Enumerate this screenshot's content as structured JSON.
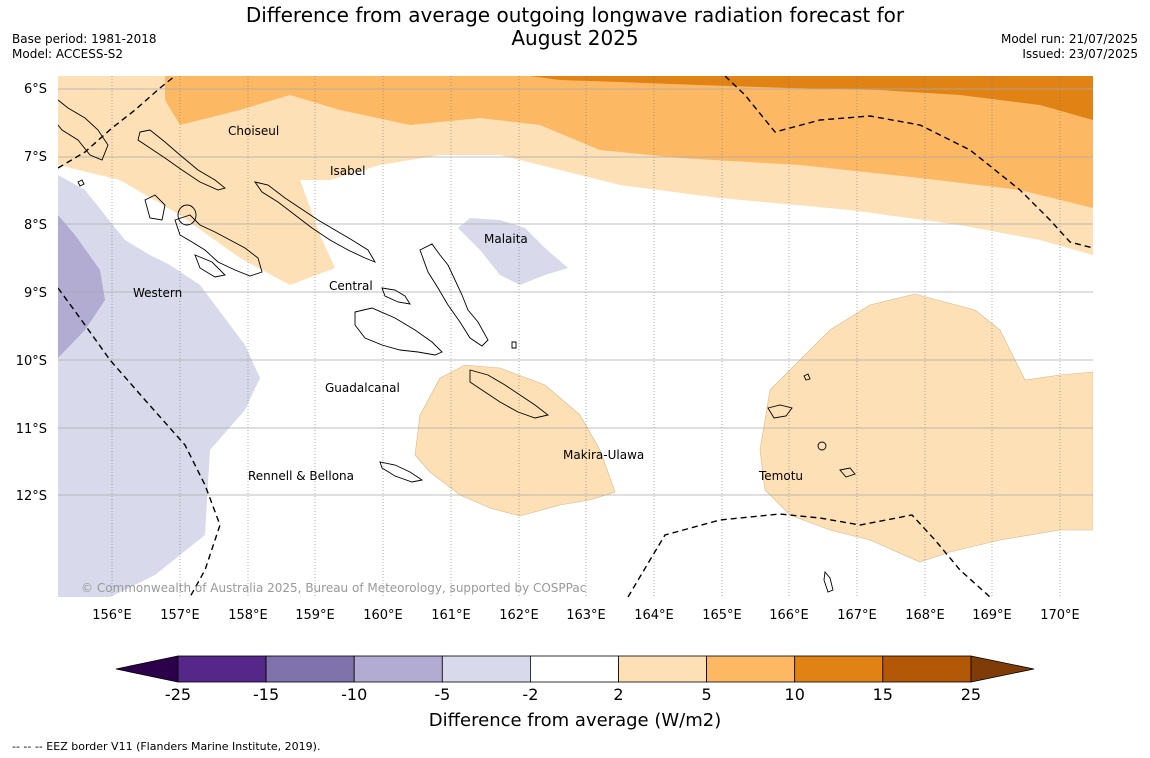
{
  "header": {
    "title_line1": "Difference from average outgoing longwave radiation forecast for",
    "title_line2": "August 2025",
    "base_period": "Base period: 1981-2018",
    "model": "Model: ACCESS-S2",
    "model_run": "Model run: 21/07/2025",
    "issued": "Issued: 23/07/2025"
  },
  "map": {
    "longitude_ticks": [
      "156°E",
      "157°E",
      "158°E",
      "159°E",
      "160°E",
      "161°E",
      "162°E",
      "163°E",
      "164°E",
      "165°E",
      "166°E",
      "167°E",
      "168°E",
      "169°E",
      "170°E"
    ],
    "latitude_ticks": [
      "6°S",
      "7°S",
      "8°S",
      "9°S",
      "10°S",
      "11°S",
      "12°S"
    ],
    "longitude_range": [
      155.2,
      170.5
    ],
    "latitude_range": [
      -13.5,
      -5.8
    ],
    "regions": [
      "Choiseul",
      "Isabel",
      "Malaita",
      "Western",
      "Central",
      "Guadalcanal",
      "Makira-Ulawa",
      "Rennell & Bellona",
      "Temotu"
    ],
    "credit": "© Commonwealth of Australia 2025, Bureau of Meteorology, supported by COSPPac"
  },
  "colorbar": {
    "boundaries": [
      "-25",
      "-15",
      "-10",
      "-5",
      "-2",
      "2",
      "5",
      "10",
      "15",
      "25"
    ],
    "colors": [
      "#542788",
      "#8073ac",
      "#b2abd2",
      "#d8daeb",
      "#ffffff",
      "#fee0b6",
      "#fdb863",
      "#e08214",
      "#b35806"
    ],
    "under_color": "#2d004b",
    "over_color": "#7f3b08",
    "title": "Difference from average (W/m2)"
  },
  "footnote": "--  --  -- EEZ border V11 (Flanders Marine Institute, 2019)."
}
